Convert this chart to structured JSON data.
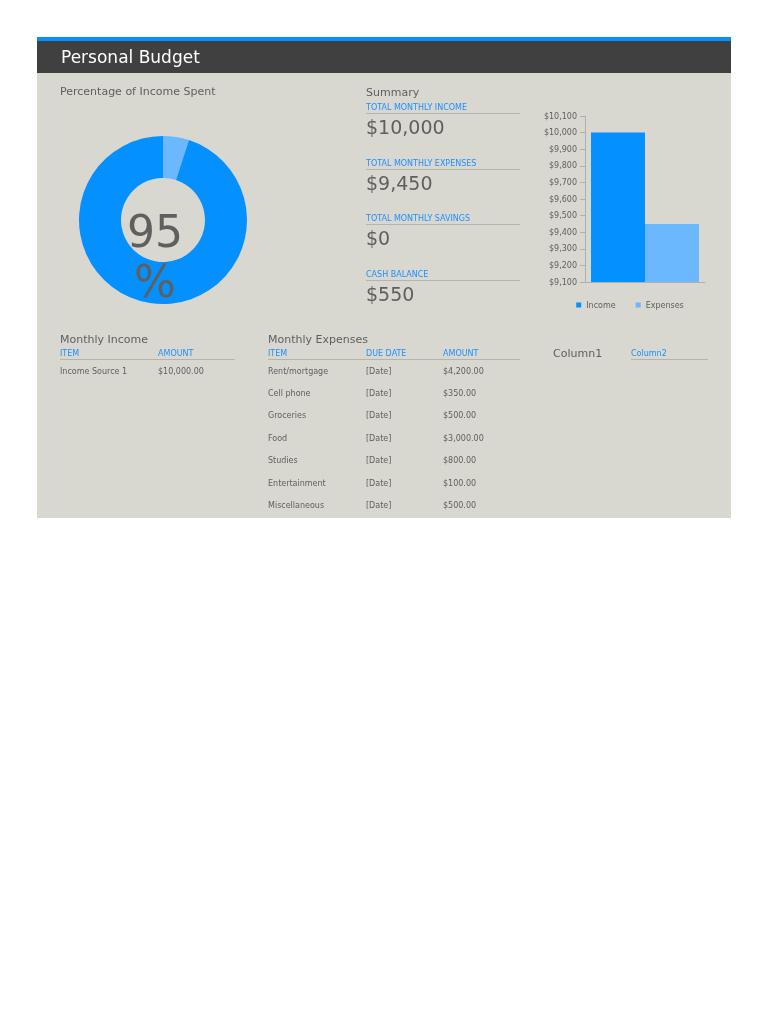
{
  "chart_data": [
    {
      "type": "other",
      "title": "Personal Budget"
    },
    {
      "type": "donut",
      "title": "Percentage of Income Spent",
      "categories": [
        null,
        null
      ],
      "values": [
        5,
        95
      ],
      "colors": [
        "#6bb8ff",
        "#0590ff"
      ],
      "annotations": [
        "95",
        "%"
      ]
    },
    {
      "type": "other",
      "title": "Summary",
      "annotations": [
        "TOTAL MONTHLY INCOME",
        "$10,000",
        "TOTAL MONTHLY EXPENSES",
        "$9,450",
        "TOTAL MONTHLY SAVINGS",
        "$0",
        "CASH BALANCE",
        "$550"
      ]
    },
    {
      "type": "bar",
      "categories": [
        null
      ],
      "series": [
        {
          "name": "Income",
          "color": "#0590ff",
          "values": [
            10000
          ]
        },
        {
          "name": "Expenses",
          "color": "#6bb8ff",
          "values": [
            9450
          ]
        }
      ],
      "ylim": [
        9100,
        10100
      ],
      "yticks": [
        {
          "value": 9100,
          "label": "$9,100"
        },
        {
          "value": 9200,
          "label": "$9,200"
        },
        {
          "value": 9300,
          "label": "$9,300"
        },
        {
          "value": 9400,
          "label": "$9,400"
        },
        {
          "value": 9500,
          "label": "$9,500"
        },
        {
          "value": 9600,
          "label": "$9,600"
        },
        {
          "value": 9700,
          "label": "$9,700"
        },
        {
          "value": 9800,
          "label": "$9,800"
        },
        {
          "value": 9900,
          "label": "$9,900"
        },
        {
          "value": 10000,
          "label": "$10,000"
        },
        {
          "value": 10100,
          "label": "$10,100"
        }
      ],
      "grid": false,
      "legend": "bottom"
    },
    {
      "type": "other",
      "title": "Monthly Income",
      "categories": [
        "ITEM",
        "AMOUNT"
      ],
      "annotations": [
        "Income Source 1",
        "$10,000.00"
      ]
    },
    {
      "type": "other",
      "title": "Monthly Expenses",
      "categories": [
        "ITEM",
        "DUE DATE",
        "AMOUNT"
      ],
      "annotations": [
        "Rent/mortgage",
        "[Date]",
        "$4,200.00",
        "Cell phone",
        "[Date]",
        "$350.00",
        "Groceries",
        "[Date]",
        "$500.00",
        "Food",
        "[Date]",
        "$3,000.00",
        "Studies",
        "[Date]",
        "$800.00",
        "Entertainment",
        "[Date]",
        "$100.00",
        "Miscellaneous",
        "[Date]",
        "$500.00"
      ]
    },
    {
      "type": "other",
      "title": "Column1",
      "categories": [
        "Column2"
      ]
    }
  ]
}
